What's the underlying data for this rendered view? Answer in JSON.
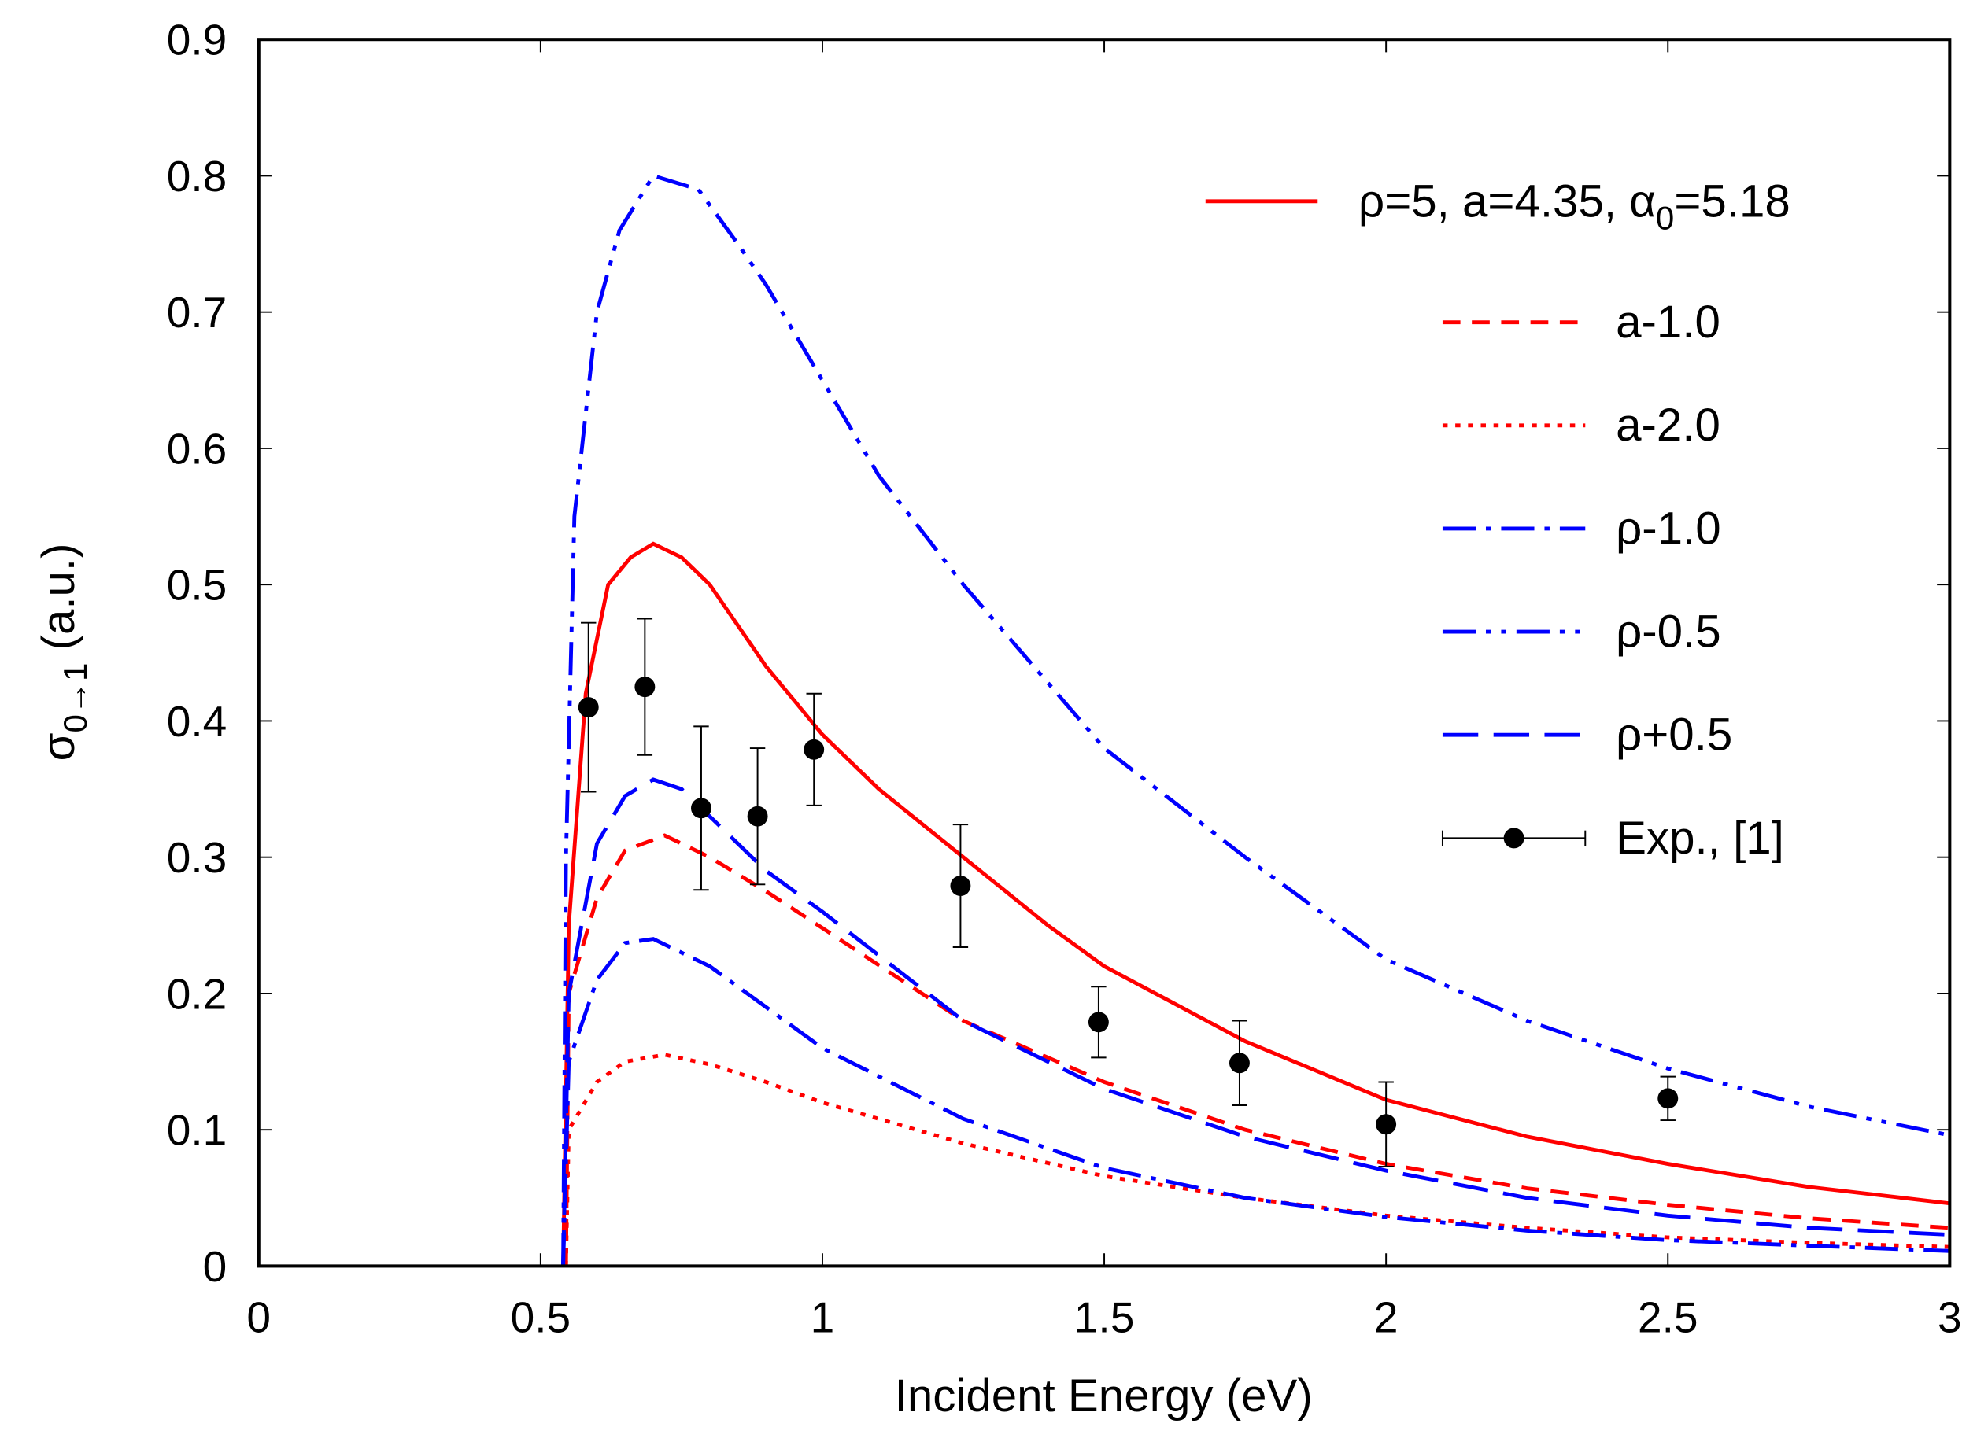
{
  "chart_data": {
    "type": "line",
    "title": "",
    "xlabel": "Incident Energy (eV)",
    "ylabel": {
      "main": "σ",
      "sub": "0→1",
      "rest": " (a.u.)"
    },
    "xlim": [
      0,
      3
    ],
    "ylim": [
      0,
      0.9
    ],
    "xticks": [
      "0",
      "0.5",
      "1",
      "1.5",
      "2",
      "2.5",
      "3"
    ],
    "yticks": [
      "0",
      "0.1",
      "0.2",
      "0.3",
      "0.4",
      "0.5",
      "0.6",
      "0.7",
      "0.8",
      "0.9"
    ],
    "grid": false,
    "legend_position": "top-right",
    "series": [
      {
        "name": "ρ=5, a=4.35, α0=5.18",
        "label_parts": [
          "ρ=5, a=4.35, α",
          "0",
          "=5.18"
        ],
        "color": "#ff0000",
        "style": "solid",
        "x": [
          0.54,
          0.55,
          0.58,
          0.62,
          0.66,
          0.7,
          0.75,
          0.8,
          0.85,
          0.9,
          1.0,
          1.1,
          1.25,
          1.4,
          1.5,
          1.75,
          2.0,
          2.25,
          2.5,
          2.75,
          3.0
        ],
        "y": [
          0,
          0.25,
          0.42,
          0.5,
          0.52,
          0.53,
          0.52,
          0.5,
          0.47,
          0.44,
          0.39,
          0.35,
          0.3,
          0.25,
          0.22,
          0.165,
          0.122,
          0.095,
          0.075,
          0.058,
          0.046
        ]
      },
      {
        "name": "a-1.0",
        "color": "#ff0000",
        "style": "dashed",
        "x": [
          0.545,
          0.55,
          0.6,
          0.65,
          0.72,
          0.8,
          0.9,
          1.0,
          1.25,
          1.5,
          1.75,
          2.0,
          2.25,
          2.5,
          2.75,
          3.0
        ],
        "y": [
          0,
          0.2,
          0.27,
          0.305,
          0.316,
          0.3,
          0.275,
          0.248,
          0.18,
          0.135,
          0.1,
          0.075,
          0.057,
          0.045,
          0.035,
          0.028
        ]
      },
      {
        "name": "a-2.0",
        "color": "#ff0000",
        "style": "dotted",
        "x": [
          0.545,
          0.55,
          0.6,
          0.65,
          0.72,
          0.8,
          0.9,
          1.0,
          1.25,
          1.5,
          1.75,
          2.0,
          2.25,
          2.5,
          2.75,
          3.0
        ],
        "y": [
          0,
          0.1,
          0.135,
          0.15,
          0.155,
          0.148,
          0.135,
          0.12,
          0.09,
          0.066,
          0.05,
          0.037,
          0.028,
          0.021,
          0.017,
          0.014
        ]
      },
      {
        "name": "ρ-1.0",
        "color": "#0000ff",
        "style": "dashdot",
        "x": [
          0.54,
          0.55,
          0.6,
          0.65,
          0.7,
          0.8,
          0.9,
          1.0,
          1.25,
          1.5,
          1.75,
          2.0,
          2.25,
          2.5,
          2.75,
          3.0
        ],
        "y": [
          0,
          0.15,
          0.21,
          0.237,
          0.24,
          0.22,
          0.19,
          0.16,
          0.108,
          0.072,
          0.05,
          0.036,
          0.026,
          0.019,
          0.015,
          0.011
        ]
      },
      {
        "name": "ρ-0.5",
        "color": "#0000ff",
        "style": "dashdotdot",
        "x": [
          0.54,
          0.545,
          0.56,
          0.6,
          0.64,
          0.7,
          0.78,
          0.85,
          0.9,
          1.0,
          1.1,
          1.25,
          1.5,
          1.75,
          2.0,
          2.25,
          2.5,
          2.75,
          3.0
        ],
        "y": [
          0,
          0.3,
          0.55,
          0.7,
          0.76,
          0.8,
          0.79,
          0.75,
          0.72,
          0.65,
          0.58,
          0.5,
          0.38,
          0.3,
          0.225,
          0.18,
          0.145,
          0.117,
          0.096
        ]
      },
      {
        "name": "ρ+0.5",
        "color": "#0000ff",
        "style": "longdash",
        "x": [
          0.54,
          0.55,
          0.6,
          0.65,
          0.7,
          0.75,
          0.8,
          0.9,
          1.0,
          1.25,
          1.5,
          1.75,
          2.0,
          2.25,
          2.5,
          2.75,
          3.0
        ],
        "y": [
          0,
          0.2,
          0.31,
          0.345,
          0.357,
          0.35,
          0.33,
          0.29,
          0.26,
          0.18,
          0.13,
          0.095,
          0.07,
          0.05,
          0.037,
          0.028,
          0.023
        ]
      }
    ],
    "experiment": {
      "name": "Exp., [1]",
      "color": "#000000",
      "x": [
        0.585,
        0.685,
        0.785,
        0.885,
        0.985,
        1.245,
        1.49,
        1.74,
        2.0,
        2.5
      ],
      "y": [
        0.41,
        0.425,
        0.336,
        0.33,
        0.379,
        0.279,
        0.179,
        0.149,
        0.104,
        0.123
      ],
      "err": [
        0.062,
        0.05,
        0.06,
        0.05,
        0.041,
        0.045,
        0.026,
        0.031,
        0.031,
        0.016
      ]
    }
  }
}
